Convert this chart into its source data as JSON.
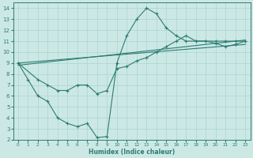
{
  "xlabel": "Humidex (Indice chaleur)",
  "bg_color": "#cce8e5",
  "grid_color": "#b0d8d4",
  "line_color": "#2d7d72",
  "xlim": [
    -0.5,
    23.5
  ],
  "ylim": [
    2,
    14.5
  ],
  "xticks": [
    0,
    1,
    2,
    3,
    4,
    5,
    6,
    7,
    8,
    9,
    10,
    11,
    12,
    13,
    14,
    15,
    16,
    17,
    18,
    19,
    20,
    21,
    22,
    23
  ],
  "yticks": [
    2,
    3,
    4,
    5,
    6,
    7,
    8,
    9,
    10,
    11,
    12,
    13,
    14
  ],
  "curve1_x": [
    0,
    1,
    2,
    3,
    4,
    5,
    6,
    7,
    8,
    9,
    10,
    11,
    12,
    13,
    14,
    15,
    16,
    17,
    18,
    19,
    20,
    21,
    22,
    23
  ],
  "curve1_y": [
    9,
    7.5,
    6,
    5.5,
    4,
    3.5,
    3.2,
    3.5,
    2.2,
    2.3,
    9.0,
    11.5,
    13.0,
    14.0,
    13.5,
    12.2,
    11.5,
    11.0,
    11.0,
    11.0,
    10.8,
    10.5,
    10.7,
    11.0
  ],
  "curve2_x": [
    0,
    2,
    3,
    4,
    5,
    6,
    7,
    8,
    9,
    10,
    11,
    12,
    13,
    14,
    15,
    16,
    17,
    18,
    19,
    20,
    21,
    22,
    23
  ],
  "curve2_y": [
    9,
    7.5,
    7.0,
    6.5,
    6.5,
    7.0,
    7.0,
    6.2,
    6.5,
    8.5,
    8.7,
    9.2,
    9.5,
    10.0,
    10.5,
    11.0,
    11.5,
    11.0,
    11.0,
    11.0,
    11.0,
    11.0,
    11.0
  ],
  "line3_x": [
    0,
    23
  ],
  "line3_y": [
    8.8,
    11.1
  ],
  "line4_x": [
    0,
    23
  ],
  "line4_y": [
    9.0,
    10.7
  ]
}
